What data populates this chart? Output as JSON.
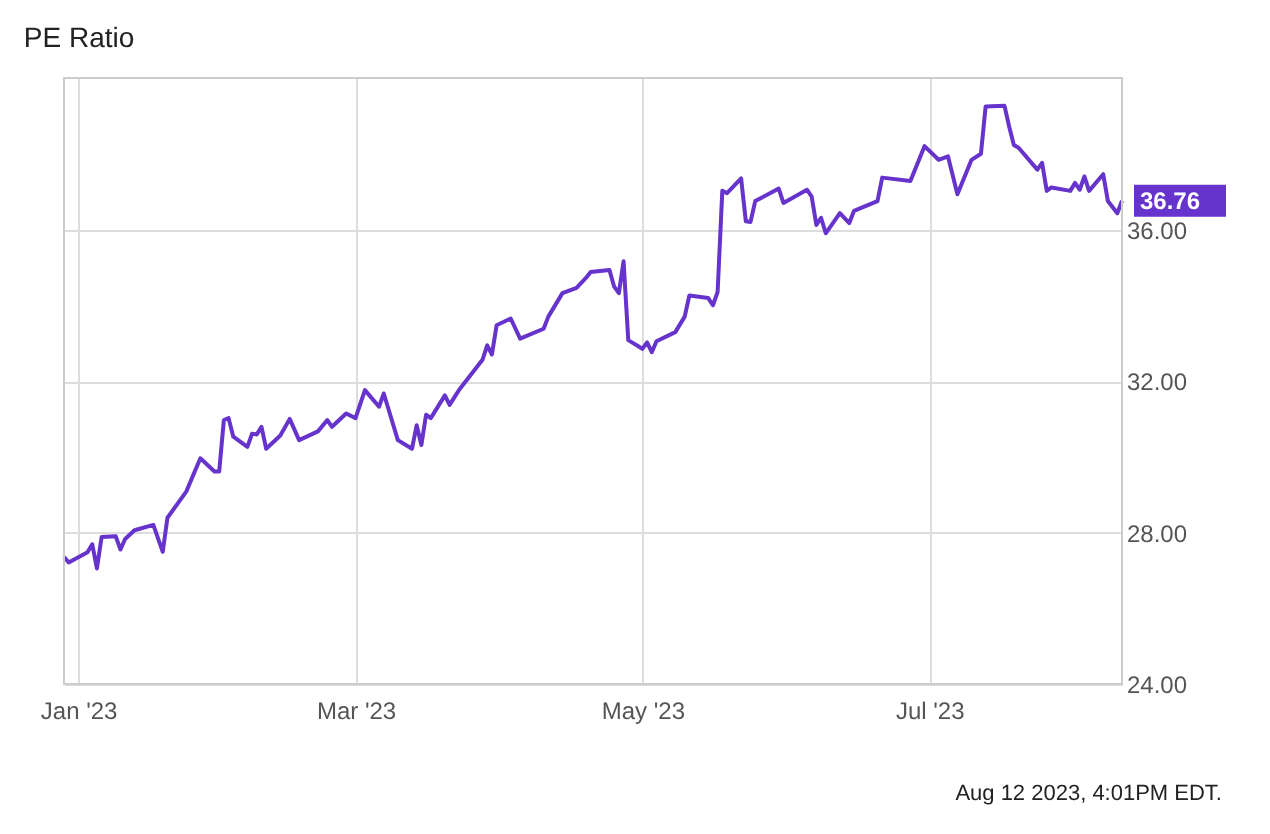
{
  "chart_data": {
    "type": "line",
    "title": "PE Ratio",
    "x": [
      "2022-12-29",
      "2022-12-30",
      "2023-01-03",
      "2023-01-04",
      "2023-01-05",
      "2023-01-06",
      "2023-01-09",
      "2023-01-10",
      "2023-01-11",
      "2023-01-13",
      "2023-01-17",
      "2023-01-19",
      "2023-01-20",
      "2023-01-24",
      "2023-01-27",
      "2023-01-30",
      "2023-01-31",
      "2023-02-01",
      "2023-02-02",
      "2023-02-03",
      "2023-02-06",
      "2023-02-07",
      "2023-02-08",
      "2023-02-09",
      "2023-02-10",
      "2023-02-13",
      "2023-02-15",
      "2023-02-17",
      "2023-02-21",
      "2023-02-23",
      "2023-02-24",
      "2023-02-27",
      "2023-03-01",
      "2023-03-03",
      "2023-03-06",
      "2023-03-07",
      "2023-03-10",
      "2023-03-13",
      "2023-03-14",
      "2023-03-15",
      "2023-03-16",
      "2023-03-17",
      "2023-03-20",
      "2023-03-21",
      "2023-03-23",
      "2023-03-28",
      "2023-03-29",
      "2023-03-30",
      "2023-03-31",
      "2023-04-03",
      "2023-04-05",
      "2023-04-10",
      "2023-04-11",
      "2023-04-14",
      "2023-04-17",
      "2023-04-19",
      "2023-04-20",
      "2023-04-24",
      "2023-04-25",
      "2023-04-26",
      "2023-04-27",
      "2023-04-28",
      "2023-05-01",
      "2023-05-02",
      "2023-05-03",
      "2023-05-04",
      "2023-05-08",
      "2023-05-10",
      "2023-05-11",
      "2023-05-15",
      "2023-05-16",
      "2023-05-17",
      "2023-05-18",
      "2023-05-19",
      "2023-05-22",
      "2023-05-23",
      "2023-05-24",
      "2023-05-25",
      "2023-05-30",
      "2023-05-31",
      "2023-06-05",
      "2023-06-06",
      "2023-06-07",
      "2023-06-08",
      "2023-06-09",
      "2023-06-12",
      "2023-06-14",
      "2023-06-15",
      "2023-06-20",
      "2023-06-21",
      "2023-06-27",
      "2023-06-30",
      "2023-07-03",
      "2023-07-05",
      "2023-07-07",
      "2023-07-10",
      "2023-07-12",
      "2023-07-13",
      "2023-07-17",
      "2023-07-18",
      "2023-07-19",
      "2023-07-20",
      "2023-07-24",
      "2023-07-25",
      "2023-07-26",
      "2023-07-27",
      "2023-07-31",
      "2023-08-01",
      "2023-08-02",
      "2023-08-03",
      "2023-08-04",
      "2023-08-07",
      "2023-08-08",
      "2023-08-10",
      "2023-08-11"
    ],
    "series": [
      {
        "color": "#6633cc",
        "values": [
          27.35,
          27.21,
          27.48,
          27.69,
          27.05,
          27.88,
          27.9,
          27.55,
          27.83,
          28.06,
          28.2,
          27.49,
          28.39,
          29.08,
          29.96,
          29.61,
          29.61,
          30.97,
          31.02,
          30.53,
          30.26,
          30.61,
          30.59,
          30.79,
          30.21,
          30.56,
          31.0,
          30.44,
          30.67,
          30.97,
          30.79,
          31.14,
          31.02,
          31.76,
          31.32,
          31.67,
          30.44,
          30.21,
          30.83,
          30.31,
          31.11,
          31.02,
          31.62,
          31.37,
          31.76,
          32.56,
          32.94,
          32.7,
          33.47,
          33.65,
          33.12,
          33.38,
          33.7,
          34.32,
          34.46,
          34.72,
          34.88,
          34.93,
          34.49,
          34.32,
          35.16,
          33.08,
          32.85,
          33.02,
          32.76,
          33.05,
          33.29,
          33.7,
          34.26,
          34.19,
          34.0,
          34.35,
          37.02,
          36.96,
          37.35,
          36.22,
          36.2,
          36.75,
          37.08,
          36.7,
          37.05,
          36.87,
          36.12,
          36.31,
          35.9,
          36.43,
          36.17,
          36.49,
          36.75,
          37.37,
          37.28,
          38.2,
          37.84,
          37.93,
          36.93,
          37.84,
          38.0,
          39.25,
          39.27,
          38.72,
          38.23,
          38.16,
          37.58,
          37.76,
          37.02,
          37.11,
          37.02,
          37.23,
          37.05,
          37.4,
          37.02,
          37.46,
          36.75,
          36.43,
          36.76
        ],
        "value_labels": [
          null,
          null,
          null,
          null,
          null,
          null,
          null,
          null,
          null,
          null,
          null,
          null,
          null,
          null,
          null,
          null,
          null,
          null,
          null,
          null,
          null,
          null,
          null,
          null,
          null,
          null,
          null,
          null,
          null,
          null,
          null,
          null,
          null,
          null,
          null,
          null,
          null,
          null,
          null,
          null,
          null,
          null,
          null,
          null,
          null,
          null,
          null,
          null,
          null,
          null,
          null,
          null,
          null,
          null,
          null,
          null,
          null,
          null,
          null,
          null,
          null,
          null,
          null,
          null,
          null,
          null,
          null,
          null,
          null,
          null,
          null,
          null,
          null,
          null,
          null,
          null,
          null,
          null,
          null,
          null,
          null,
          null,
          null,
          null,
          null,
          null,
          null,
          null,
          null,
          null,
          null,
          null,
          null,
          null,
          null,
          null,
          null,
          null,
          null,
          null,
          null,
          null,
          null,
          null,
          null,
          null,
          null,
          null,
          null,
          null,
          null,
          null,
          null,
          null,
          "36.76"
        ]
      }
    ],
    "xlim": [
      "2022-12-29",
      "2023-08-11"
    ],
    "xticks": [
      {
        "value": "2023-01-01",
        "label": "Jan '23"
      },
      {
        "value": "2023-03-01",
        "label": "Mar '23"
      },
      {
        "value": "2023-05-01",
        "label": "May '23"
      },
      {
        "value": "2023-07-01",
        "label": "Jul '23"
      }
    ],
    "ylim": [
      24,
      40
    ],
    "yticks": [
      {
        "value": 24,
        "label": "24.00"
      },
      {
        "value": 28,
        "label": "28.00"
      },
      {
        "value": 32,
        "label": "32.00"
      },
      {
        "value": 36,
        "label": "36.00"
      }
    ],
    "grid": true,
    "marker": "none",
    "line_style": "solid",
    "annotations": [
      "Aug 12 2023, 4:01PM EDT."
    ]
  }
}
